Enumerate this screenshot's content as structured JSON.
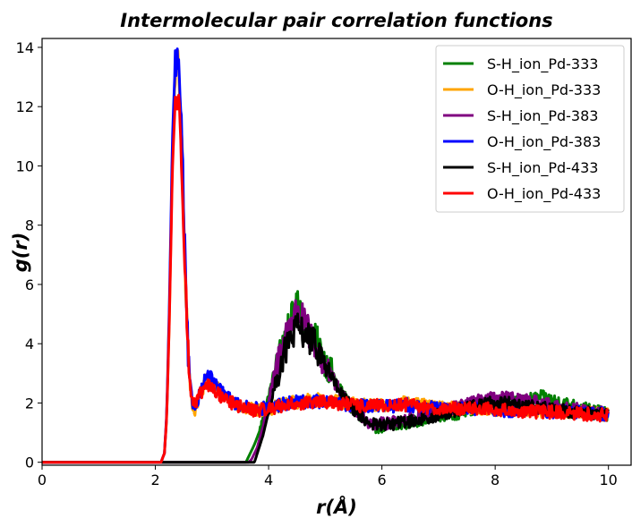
{
  "chart_data": {
    "type": "line",
    "title": "Intermolecular  pair  correlation functions",
    "xlabel": "r(Å)",
    "ylabel": "g(r)",
    "xlim": [
      0,
      10.4
    ],
    "ylim": [
      -0.1,
      14.3
    ],
    "xticks": [
      0,
      2,
      4,
      6,
      8,
      10
    ],
    "yticks": [
      0,
      2,
      4,
      6,
      8,
      10,
      12,
      14
    ],
    "grid": false,
    "legend_position": "top-right",
    "x_start": 0,
    "x_end": 10,
    "series": [
      {
        "name": "S-H_ion_Pd-333",
        "color": "#008000",
        "points": [
          [
            0,
            0
          ],
          [
            3.6,
            0
          ],
          [
            3.65,
            0.2
          ],
          [
            3.75,
            0.6
          ],
          [
            3.85,
            1.1
          ],
          [
            3.95,
            1.8
          ],
          [
            4.05,
            2.6
          ],
          [
            4.15,
            3.3
          ],
          [
            4.25,
            4.1
          ],
          [
            4.35,
            4.6
          ],
          [
            4.45,
            5.0
          ],
          [
            4.55,
            5.4
          ],
          [
            4.65,
            4.6
          ],
          [
            4.75,
            4.3
          ],
          [
            4.85,
            4.1
          ],
          [
            4.95,
            3.6
          ],
          [
            5.05,
            3.2
          ],
          [
            5.15,
            2.9
          ],
          [
            5.3,
            2.3
          ],
          [
            5.45,
            1.9
          ],
          [
            5.6,
            1.6
          ],
          [
            5.8,
            1.2
          ],
          [
            6.0,
            1.2
          ],
          [
            6.2,
            1.2
          ],
          [
            6.4,
            1.3
          ],
          [
            6.6,
            1.4
          ],
          [
            6.8,
            1.5
          ],
          [
            7.0,
            1.6
          ],
          [
            7.2,
            1.6
          ],
          [
            7.4,
            1.7
          ],
          [
            7.6,
            1.8
          ],
          [
            7.8,
            1.9
          ],
          [
            8.0,
            2.0
          ],
          [
            8.2,
            2.0
          ],
          [
            8.4,
            2.0
          ],
          [
            8.6,
            2.1
          ],
          [
            8.8,
            2.2
          ],
          [
            9.0,
            2.1
          ],
          [
            9.2,
            2.0
          ],
          [
            9.4,
            1.9
          ],
          [
            9.6,
            1.8
          ],
          [
            9.8,
            1.7
          ],
          [
            10.0,
            1.6
          ]
        ]
      },
      {
        "name": "O-H_ion_Pd-333",
        "color": "#ffa500",
        "points": [
          [
            0,
            0
          ],
          [
            2.1,
            0
          ],
          [
            2.16,
            0.3
          ],
          [
            2.2,
            1.5
          ],
          [
            2.25,
            5.0
          ],
          [
            2.3,
            10.2
          ],
          [
            2.35,
            13.2
          ],
          [
            2.4,
            13.4
          ],
          [
            2.45,
            11.8
          ],
          [
            2.5,
            8.5
          ],
          [
            2.55,
            5.0
          ],
          [
            2.6,
            2.8
          ],
          [
            2.65,
            2.0
          ],
          [
            2.7,
            1.8
          ],
          [
            2.8,
            2.3
          ],
          [
            2.9,
            2.8
          ],
          [
            3.0,
            2.7
          ],
          [
            3.1,
            2.5
          ],
          [
            3.2,
            2.3
          ],
          [
            3.4,
            2.0
          ],
          [
            3.6,
            1.8
          ],
          [
            3.8,
            1.75
          ],
          [
            4.0,
            1.8
          ],
          [
            4.2,
            1.9
          ],
          [
            4.4,
            2.0
          ],
          [
            4.6,
            2.05
          ],
          [
            4.8,
            2.1
          ],
          [
            5.0,
            2.1
          ],
          [
            5.2,
            2.05
          ],
          [
            5.4,
            2.0
          ],
          [
            5.6,
            1.95
          ],
          [
            5.8,
            1.9
          ],
          [
            6.0,
            1.9
          ],
          [
            6.2,
            1.95
          ],
          [
            6.4,
            2.0
          ],
          [
            6.6,
            1.95
          ],
          [
            6.8,
            1.9
          ],
          [
            7.0,
            1.85
          ],
          [
            7.4,
            1.8
          ],
          [
            7.8,
            1.8
          ],
          [
            8.2,
            1.75
          ],
          [
            8.6,
            1.75
          ],
          [
            9.0,
            1.7
          ],
          [
            9.4,
            1.7
          ],
          [
            9.8,
            1.65
          ],
          [
            10.0,
            1.6
          ]
        ]
      },
      {
        "name": "S-H_ion_Pd-383",
        "color": "#800080",
        "points": [
          [
            0,
            0
          ],
          [
            3.65,
            0
          ],
          [
            3.7,
            0.1
          ],
          [
            3.8,
            0.5
          ],
          [
            3.9,
            1.2
          ],
          [
            4.0,
            2.0
          ],
          [
            4.1,
            2.9
          ],
          [
            4.2,
            3.7
          ],
          [
            4.3,
            4.3
          ],
          [
            4.4,
            4.8
          ],
          [
            4.5,
            5.1
          ],
          [
            4.6,
            4.8
          ],
          [
            4.7,
            4.4
          ],
          [
            4.8,
            4.0
          ],
          [
            4.9,
            3.6
          ],
          [
            5.0,
            3.2
          ],
          [
            5.1,
            2.9
          ],
          [
            5.25,
            2.4
          ],
          [
            5.4,
            2.0
          ],
          [
            5.6,
            1.6
          ],
          [
            5.8,
            1.3
          ],
          [
            6.0,
            1.3
          ],
          [
            6.2,
            1.35
          ],
          [
            6.4,
            1.45
          ],
          [
            6.6,
            1.5
          ],
          [
            6.8,
            1.6
          ],
          [
            7.0,
            1.7
          ],
          [
            7.2,
            1.8
          ],
          [
            7.4,
            1.9
          ],
          [
            7.6,
            2.0
          ],
          [
            7.8,
            2.1
          ],
          [
            8.0,
            2.15
          ],
          [
            8.2,
            2.15
          ],
          [
            8.4,
            2.1
          ],
          [
            8.6,
            2.05
          ],
          [
            8.8,
            2.0
          ],
          [
            9.0,
            1.9
          ],
          [
            9.2,
            1.85
          ],
          [
            9.4,
            1.8
          ],
          [
            9.6,
            1.75
          ],
          [
            9.8,
            1.7
          ],
          [
            10.0,
            1.6
          ]
        ]
      },
      {
        "name": "O-H_ion_Pd-383",
        "color": "#0000ff",
        "points": [
          [
            0,
            0
          ],
          [
            2.1,
            0
          ],
          [
            2.16,
            0.3
          ],
          [
            2.2,
            1.6
          ],
          [
            2.25,
            5.5
          ],
          [
            2.3,
            10.8
          ],
          [
            2.35,
            13.5
          ],
          [
            2.4,
            13.6
          ],
          [
            2.45,
            12.0
          ],
          [
            2.5,
            8.6
          ],
          [
            2.55,
            5.0
          ],
          [
            2.6,
            2.8
          ],
          [
            2.65,
            2.0
          ],
          [
            2.7,
            1.9
          ],
          [
            2.8,
            2.4
          ],
          [
            2.9,
            2.9
          ],
          [
            3.0,
            2.8
          ],
          [
            3.1,
            2.5
          ],
          [
            3.2,
            2.3
          ],
          [
            3.4,
            2.0
          ],
          [
            3.6,
            1.85
          ],
          [
            3.8,
            1.8
          ],
          [
            4.0,
            1.85
          ],
          [
            4.2,
            1.95
          ],
          [
            4.4,
            2.0
          ],
          [
            4.6,
            2.05
          ],
          [
            4.8,
            2.05
          ],
          [
            5.0,
            2.05
          ],
          [
            5.2,
            2.0
          ],
          [
            5.4,
            1.95
          ],
          [
            5.6,
            1.9
          ],
          [
            5.8,
            1.9
          ],
          [
            6.0,
            1.9
          ],
          [
            6.2,
            1.9
          ],
          [
            6.4,
            1.95
          ],
          [
            6.6,
            1.9
          ],
          [
            6.8,
            1.85
          ],
          [
            7.0,
            1.8
          ],
          [
            7.4,
            1.8
          ],
          [
            7.8,
            1.8
          ],
          [
            8.2,
            1.75
          ],
          [
            8.6,
            1.75
          ],
          [
            9.0,
            1.7
          ],
          [
            9.4,
            1.7
          ],
          [
            9.8,
            1.65
          ],
          [
            10.0,
            1.6
          ]
        ]
      },
      {
        "name": "S-H_ion_Pd-433",
        "color": "#000000",
        "points": [
          [
            0,
            0
          ],
          [
            3.75,
            0
          ],
          [
            3.8,
            0.3
          ],
          [
            3.9,
            0.9
          ],
          [
            4.0,
            1.7
          ],
          [
            4.1,
            2.5
          ],
          [
            4.2,
            3.2
          ],
          [
            4.3,
            3.8
          ],
          [
            4.4,
            4.2
          ],
          [
            4.5,
            4.5
          ],
          [
            4.6,
            4.4
          ],
          [
            4.7,
            4.2
          ],
          [
            4.8,
            4.0
          ],
          [
            4.9,
            3.7
          ],
          [
            5.0,
            3.3
          ],
          [
            5.1,
            2.9
          ],
          [
            5.25,
            2.4
          ],
          [
            5.4,
            2.0
          ],
          [
            5.6,
            1.6
          ],
          [
            5.8,
            1.3
          ],
          [
            6.0,
            1.25
          ],
          [
            6.2,
            1.3
          ],
          [
            6.4,
            1.35
          ],
          [
            6.6,
            1.4
          ],
          [
            6.8,
            1.5
          ],
          [
            7.0,
            1.6
          ],
          [
            7.2,
            1.7
          ],
          [
            7.4,
            1.8
          ],
          [
            7.6,
            1.9
          ],
          [
            7.8,
            2.0
          ],
          [
            8.0,
            2.0
          ],
          [
            8.2,
            2.0
          ],
          [
            8.4,
            1.95
          ],
          [
            8.6,
            1.9
          ],
          [
            8.8,
            1.85
          ],
          [
            9.0,
            1.8
          ],
          [
            9.2,
            1.75
          ],
          [
            9.4,
            1.7
          ],
          [
            9.6,
            1.7
          ],
          [
            9.8,
            1.65
          ],
          [
            10.0,
            1.6
          ]
        ]
      },
      {
        "name": "O-H_ion_Pd-433",
        "color": "#ff0000",
        "points": [
          [
            0,
            0
          ],
          [
            2.1,
            0
          ],
          [
            2.16,
            0.3
          ],
          [
            2.2,
            1.5
          ],
          [
            2.25,
            5.0
          ],
          [
            2.3,
            9.8
          ],
          [
            2.35,
            12.2
          ],
          [
            2.4,
            12.3
          ],
          [
            2.45,
            11.0
          ],
          [
            2.5,
            8.2
          ],
          [
            2.55,
            5.0
          ],
          [
            2.6,
            2.9
          ],
          [
            2.65,
            2.1
          ],
          [
            2.7,
            1.9
          ],
          [
            2.8,
            2.3
          ],
          [
            2.9,
            2.6
          ],
          [
            3.0,
            2.5
          ],
          [
            3.1,
            2.3
          ],
          [
            3.2,
            2.2
          ],
          [
            3.4,
            1.95
          ],
          [
            3.6,
            1.8
          ],
          [
            3.8,
            1.75
          ],
          [
            4.0,
            1.8
          ],
          [
            4.2,
            1.9
          ],
          [
            4.4,
            1.95
          ],
          [
            4.6,
            2.0
          ],
          [
            4.8,
            2.0
          ],
          [
            5.0,
            2.05
          ],
          [
            5.2,
            2.0
          ],
          [
            5.4,
            1.95
          ],
          [
            5.6,
            1.9
          ],
          [
            5.8,
            1.9
          ],
          [
            6.0,
            1.9
          ],
          [
            6.2,
            1.9
          ],
          [
            6.4,
            1.95
          ],
          [
            6.6,
            1.9
          ],
          [
            6.8,
            1.85
          ],
          [
            7.0,
            1.8
          ],
          [
            7.4,
            1.8
          ],
          [
            7.8,
            1.8
          ],
          [
            8.2,
            1.75
          ],
          [
            8.6,
            1.7
          ],
          [
            9.0,
            1.7
          ],
          [
            9.4,
            1.65
          ],
          [
            9.8,
            1.6
          ],
          [
            10.0,
            1.6
          ]
        ]
      }
    ]
  }
}
